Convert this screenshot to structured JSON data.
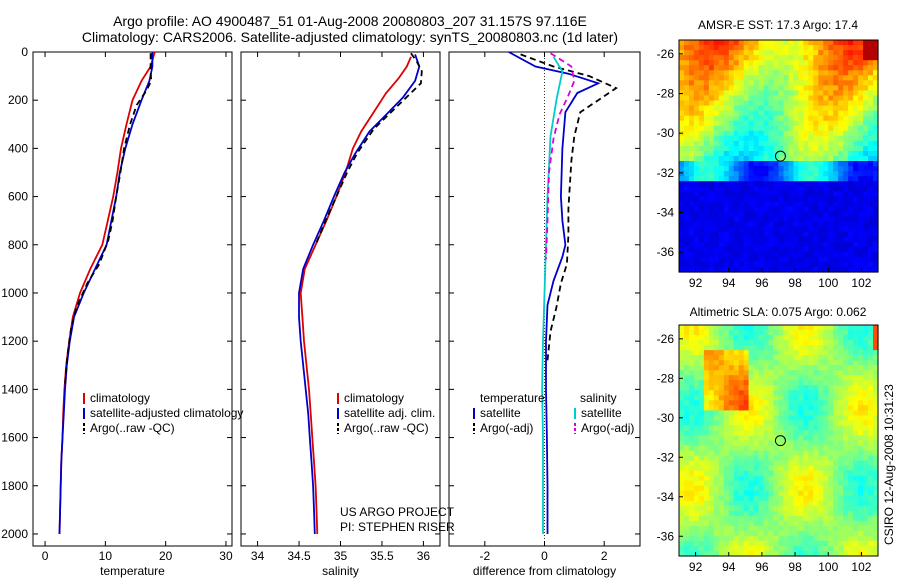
{
  "header": {
    "title_line1": "Argo profile: AO 4900487_51 01-Aug-2008 20080803_207 31.157S 97.116E",
    "title_line2": "Climatology: CARS2006. Satellite-adjusted climatology: synTS_20080803.nc (1d later)"
  },
  "side_label": "CSIRO 12-Aug-2008 10:31:23",
  "chart_data": [
    {
      "type": "line",
      "xlabel": "temperature",
      "ylabel": "",
      "xlim": [
        -2,
        31
      ],
      "ylim": [
        2050,
        0
      ],
      "xticks": [
        0,
        10,
        20,
        30
      ],
      "yticks": [
        0,
        200,
        400,
        600,
        800,
        1000,
        1200,
        1400,
        1600,
        1800,
        2000
      ],
      "legend": [
        "climatology",
        "satellite-adjusted climatology",
        "Argo(..raw -QC)"
      ],
      "series": [
        {
          "name": "climatology",
          "color": "#dd0000",
          "dash": "",
          "points": [
            [
              18.2,
              0
            ],
            [
              17.5,
              60
            ],
            [
              16,
              120
            ],
            [
              14.5,
              200
            ],
            [
              13.5,
              300
            ],
            [
              12.6,
              400
            ],
            [
              12,
              500
            ],
            [
              11.3,
              600
            ],
            [
              10.4,
              700
            ],
            [
              9.5,
              800
            ],
            [
              7.5,
              900
            ],
            [
              5.8,
              1000
            ],
            [
              4.6,
              1100
            ],
            [
              4,
              1200
            ],
            [
              3.5,
              1300
            ],
            [
              3.2,
              1400
            ],
            [
              3,
              1500
            ],
            [
              2.9,
              1600
            ],
            [
              2.7,
              1700
            ],
            [
              2.6,
              1800
            ],
            [
              2.5,
              1900
            ],
            [
              2.4,
              2000
            ]
          ]
        },
        {
          "name": "satellite-adjusted climatology",
          "color": "#0000cc",
          "dash": "",
          "points": [
            [
              17.8,
              0
            ],
            [
              17.8,
              60
            ],
            [
              17.3,
              120
            ],
            [
              16,
              200
            ],
            [
              14.5,
              300
            ],
            [
              13.3,
              400
            ],
            [
              12.4,
              500
            ],
            [
              11.8,
              600
            ],
            [
              11,
              700
            ],
            [
              10.2,
              800
            ],
            [
              8.3,
              900
            ],
            [
              6.4,
              1000
            ],
            [
              4.8,
              1100
            ],
            [
              4.1,
              1200
            ],
            [
              3.6,
              1300
            ],
            [
              3.3,
              1400
            ],
            [
              3.1,
              1500
            ],
            [
              2.9,
              1600
            ],
            [
              2.7,
              1700
            ],
            [
              2.6,
              1800
            ],
            [
              2.5,
              1900
            ],
            [
              2.4,
              2000
            ]
          ]
        },
        {
          "name": "Argo(..raw -QC)",
          "color": "#000000",
          "dash": "6,4",
          "points": [
            [
              17.5,
              5
            ],
            [
              17.5,
              80
            ],
            [
              17.6,
              120
            ],
            [
              16.8,
              160
            ],
            [
              15.2,
              220
            ],
            [
              14.1,
              300
            ],
            [
              13.1,
              400
            ],
            [
              12.5,
              500
            ],
            [
              11.8,
              600
            ],
            [
              11.2,
              700
            ],
            [
              10.5,
              780
            ],
            [
              9,
              880
            ],
            [
              7,
              960
            ],
            [
              5.2,
              1060
            ],
            [
              4.3,
              1150
            ],
            [
              3.7,
              1260
            ],
            [
              3.3,
              1380
            ]
          ]
        }
      ]
    },
    {
      "type": "line",
      "xlabel": "salinity",
      "ylabel": "",
      "xlim": [
        33.8,
        36.2
      ],
      "ylim": [
        2050,
        0
      ],
      "xticks": [
        34,
        34.5,
        35,
        35.5,
        36
      ],
      "yticks": [],
      "legend": [
        "climatology",
        "satellite adj. clim.",
        "Argo(..raw -QC)"
      ],
      "series": [
        {
          "name": "climatology",
          "color": "#dd0000",
          "dash": "",
          "points": [
            [
              35.85,
              20
            ],
            [
              35.8,
              60
            ],
            [
              35.7,
              110
            ],
            [
              35.55,
              170
            ],
            [
              35.4,
              250
            ],
            [
              35.25,
              330
            ],
            [
              35.15,
              400
            ],
            [
              35.06,
              500
            ],
            [
              34.95,
              600
            ],
            [
              34.83,
              700
            ],
            [
              34.7,
              800
            ],
            [
              34.57,
              900
            ],
            [
              34.52,
              1000
            ],
            [
              34.54,
              1100
            ],
            [
              34.56,
              1200
            ],
            [
              34.59,
              1300
            ],
            [
              34.62,
              1400
            ],
            [
              34.64,
              1500
            ],
            [
              34.66,
              1600
            ],
            [
              34.68,
              1700
            ],
            [
              34.7,
              1800
            ],
            [
              34.71,
              1900
            ],
            [
              34.72,
              2000
            ]
          ]
        },
        {
          "name": "satellite adj. clim.",
          "color": "#0000cc",
          "dash": "",
          "points": [
            [
              35.9,
              10
            ],
            [
              35.95,
              60
            ],
            [
              35.9,
              120
            ],
            [
              35.75,
              190
            ],
            [
              35.55,
              260
            ],
            [
              35.35,
              330
            ],
            [
              35.18,
              420
            ],
            [
              35.05,
              500
            ],
            [
              34.92,
              600
            ],
            [
              34.8,
              700
            ],
            [
              34.67,
              800
            ],
            [
              34.55,
              900
            ],
            [
              34.5,
              1000
            ],
            [
              34.5,
              1100
            ],
            [
              34.52,
              1200
            ],
            [
              34.55,
              1300
            ],
            [
              34.58,
              1400
            ],
            [
              34.61,
              1500
            ],
            [
              34.63,
              1600
            ],
            [
              34.65,
              1700
            ],
            [
              34.67,
              1800
            ],
            [
              34.68,
              1900
            ],
            [
              34.69,
              2000
            ]
          ]
        },
        {
          "name": "Argo(..raw -QC)",
          "color": "#000000",
          "dash": "6,4",
          "points": [
            [
              35.85,
              5
            ],
            [
              35.92,
              40
            ],
            [
              35.98,
              80
            ],
            [
              35.97,
              130
            ],
            [
              35.7,
              220
            ],
            [
              35.4,
              320
            ],
            [
              35.2,
              420
            ],
            [
              35.08,
              500
            ],
            [
              34.95,
              600
            ],
            [
              34.82,
              700
            ],
            [
              34.7,
              800
            ]
          ]
        }
      ]
    },
    {
      "type": "line",
      "xlabel": "difference from climatology",
      "ylabel": "",
      "xlim": [
        -3.2,
        3.2
      ],
      "ylim": [
        2050,
        0
      ],
      "xticks": [
        -2,
        0,
        2
      ],
      "yticks": [],
      "legend_temperature_header": "temperature",
      "legend_salinity_header": "salinity",
      "legend_temperature": [
        "satellite",
        "Argo(-adj)"
      ],
      "legend_salinity": [
        "satellite",
        "Argo(-adj)"
      ],
      "series": [
        {
          "name": "temperature satellite",
          "color": "#0000cc",
          "dash": "",
          "points": [
            [
              -1.2,
              0
            ],
            [
              -0.3,
              60
            ],
            [
              0.8,
              90
            ],
            [
              1.8,
              130
            ],
            [
              1.1,
              170
            ],
            [
              0.7,
              250
            ],
            [
              0.6,
              400
            ],
            [
              0.55,
              600
            ],
            [
              0.6,
              700
            ],
            [
              0.7,
              800
            ],
            [
              0.6,
              850
            ],
            [
              0.3,
              950
            ],
            [
              0.1,
              1050
            ],
            [
              0.05,
              1200
            ],
            [
              0.05,
              1400
            ],
            [
              0.08,
              1600
            ],
            [
              0.1,
              1800
            ],
            [
              0.1,
              2000
            ]
          ]
        },
        {
          "name": "temperature Argo(-adj)",
          "color": "#000000",
          "dash": "6,4",
          "points": [
            [
              -0.8,
              10
            ],
            [
              0.3,
              60
            ],
            [
              1.5,
              100
            ],
            [
              2.4,
              150
            ],
            [
              1.8,
              200
            ],
            [
              1.2,
              250
            ],
            [
              1.0,
              350
            ],
            [
              0.9,
              450
            ],
            [
              0.85,
              550
            ],
            [
              0.8,
              650
            ],
            [
              0.8,
              760
            ],
            [
              0.75,
              880
            ],
            [
              0.55,
              960
            ],
            [
              0.4,
              1060
            ],
            [
              0.2,
              1160
            ],
            [
              0.1,
              1280
            ]
          ]
        },
        {
          "name": "salinity satellite",
          "color": "#00cccc",
          "dash": "",
          "points": [
            [
              0.3,
              20
            ],
            [
              0.6,
              80
            ],
            [
              0.5,
              140
            ],
            [
              0.4,
              200
            ],
            [
              0.2,
              350
            ],
            [
              0.1,
              600
            ],
            [
              0.05,
              800
            ],
            [
              0.0,
              1000
            ],
            [
              -0.05,
              1200
            ],
            [
              -0.08,
              1400
            ],
            [
              -0.05,
              1600
            ],
            [
              -0.05,
              1800
            ],
            [
              -0.05,
              2000
            ]
          ]
        },
        {
          "name": "salinity Argo(-adj)",
          "color": "#dd00dd",
          "dash": "6,4",
          "points": [
            [
              0.2,
              5
            ],
            [
              0.9,
              60
            ],
            [
              1.0,
              120
            ],
            [
              0.8,
              180
            ],
            [
              0.5,
              260
            ],
            [
              0.3,
              360
            ],
            [
              0.15,
              500
            ],
            [
              0.1,
              700
            ],
            [
              0.05,
              860
            ]
          ]
        }
      ]
    },
    {
      "type": "heatmap",
      "title": "AMSR-E SST: 17.3 Argo: 17.4",
      "xticks": [
        92,
        94,
        96,
        98,
        100,
        102
      ],
      "yticks": [
        -26,
        -28,
        -30,
        -32,
        -34,
        -36
      ],
      "xlim": [
        91,
        103
      ],
      "ylim": [
        -37,
        -25.3
      ],
      "marker": [
        97.116,
        -31.157
      ]
    },
    {
      "type": "heatmap",
      "title": "Altimetric SLA: 0.075 Argo: 0.062",
      "xticks": [
        92,
        94,
        96,
        98,
        100,
        102
      ],
      "yticks": [
        -26,
        -28,
        -30,
        -32,
        -34,
        -36
      ],
      "xlim": [
        91,
        103
      ],
      "ylim": [
        -37,
        -25.3
      ],
      "marker": [
        97.116,
        -31.157
      ]
    }
  ]
}
